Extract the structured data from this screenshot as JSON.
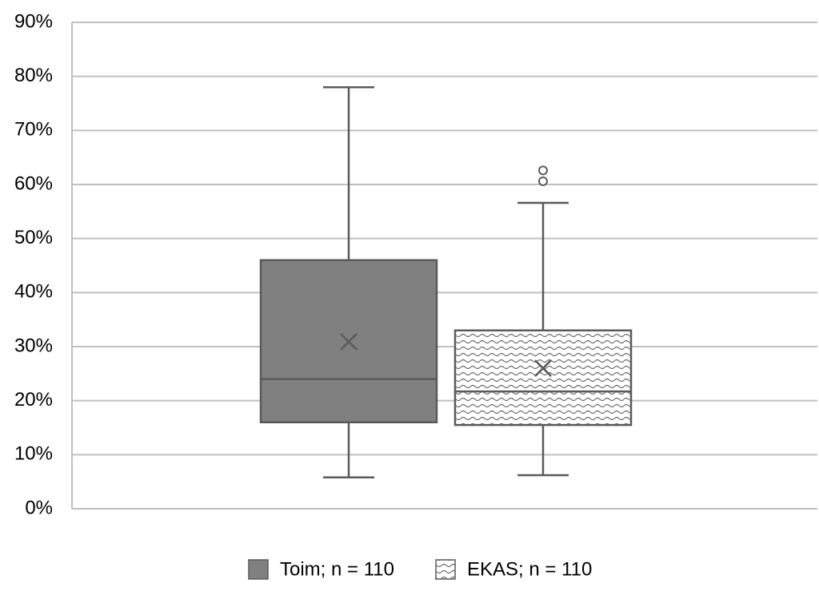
{
  "chart_data": {
    "type": "box",
    "series": [
      {
        "name": "Toim; n = 110",
        "color": "#808080",
        "pattern": null,
        "low": 5.8,
        "q1": 16,
        "median": 24,
        "q3": 46,
        "high": 78,
        "mean": 30.9,
        "outliers": []
      },
      {
        "name": "EKAS; n = 110",
        "color": "#ffffff",
        "pattern": "wave",
        "low": 6.2,
        "q1": 15.5,
        "median": 21.7,
        "q3": 33,
        "high": 56.6,
        "mean": 26,
        "outliers": [
          60.6,
          62.6
        ]
      }
    ],
    "ylim": [
      0,
      90
    ],
    "yticks": [
      {
        "value": 0,
        "label": "0%"
      },
      {
        "value": 10,
        "label": "10%"
      },
      {
        "value": 20,
        "label": "20%"
      },
      {
        "value": 30,
        "label": "30%"
      },
      {
        "value": 40,
        "label": "40%"
      },
      {
        "value": 50,
        "label": "50%"
      },
      {
        "value": 60,
        "label": "60%"
      },
      {
        "value": 70,
        "label": "70%"
      },
      {
        "value": 80,
        "label": "80%"
      },
      {
        "value": 90,
        "label": "90%"
      }
    ],
    "grid": true,
    "legend": "bottom"
  }
}
